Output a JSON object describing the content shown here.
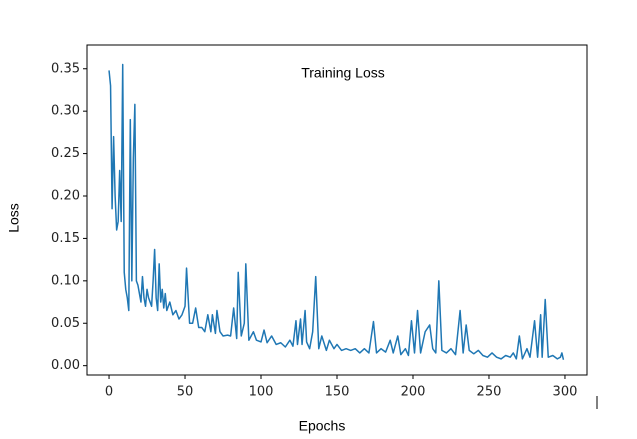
{
  "chart_data": {
    "type": "line",
    "title": "Training Loss",
    "xlabel": "Epochs",
    "ylabel": "Loss",
    "x": [
      0,
      1,
      2,
      3,
      4,
      5,
      6,
      7,
      8,
      9,
      10,
      11,
      12,
      13,
      14,
      15,
      16,
      17,
      18,
      19,
      20,
      21,
      22,
      23,
      24,
      25,
      26,
      27,
      28,
      29,
      30,
      31,
      32,
      33,
      34,
      35,
      36,
      37,
      38,
      40,
      42,
      44,
      46,
      48,
      50,
      51,
      53,
      55,
      57,
      59,
      61,
      63,
      65,
      67,
      68,
      70,
      71,
      73,
      75,
      78,
      80,
      82,
      84,
      85,
      87,
      89,
      90,
      92,
      95,
      97,
      100,
      102,
      104,
      107,
      110,
      113,
      116,
      119,
      121,
      123,
      124,
      126,
      127,
      129,
      130,
      132,
      134,
      136,
      138,
      140,
      143,
      145,
      148,
      150,
      153,
      156,
      159,
      162,
      165,
      168,
      171,
      174,
      176,
      179,
      182,
      185,
      187,
      190,
      192,
      195,
      197,
      199,
      201,
      203,
      205,
      208,
      211,
      213,
      215,
      217,
      219,
      222,
      225,
      228,
      231,
      233,
      235,
      237,
      240,
      243,
      246,
      249,
      252,
      255,
      258,
      261,
      264,
      266,
      268,
      270,
      272,
      275,
      277,
      280,
      282,
      284,
      285,
      287,
      289,
      292,
      295,
      297,
      298,
      299
    ],
    "series": [
      {
        "name": "Training Loss",
        "color": "#1f77b4",
        "values": [
          0.348,
          0.33,
          0.185,
          0.27,
          0.2,
          0.16,
          0.17,
          0.23,
          0.17,
          0.355,
          0.11,
          0.09,
          0.08,
          0.065,
          0.29,
          0.1,
          0.245,
          0.308,
          0.1,
          0.095,
          0.085,
          0.075,
          0.105,
          0.08,
          0.07,
          0.09,
          0.08,
          0.075,
          0.07,
          0.1,
          0.137,
          0.08,
          0.065,
          0.12,
          0.075,
          0.09,
          0.068,
          0.085,
          0.065,
          0.075,
          0.06,
          0.065,
          0.055,
          0.06,
          0.07,
          0.115,
          0.05,
          0.05,
          0.068,
          0.045,
          0.045,
          0.04,
          0.06,
          0.04,
          0.06,
          0.038,
          0.065,
          0.04,
          0.035,
          0.036,
          0.035,
          0.068,
          0.032,
          0.11,
          0.035,
          0.05,
          0.12,
          0.03,
          0.04,
          0.03,
          0.028,
          0.042,
          0.027,
          0.035,
          0.025,
          0.027,
          0.022,
          0.03,
          0.023,
          0.053,
          0.025,
          0.055,
          0.025,
          0.065,
          0.028,
          0.02,
          0.04,
          0.105,
          0.02,
          0.035,
          0.018,
          0.03,
          0.02,
          0.025,
          0.018,
          0.02,
          0.018,
          0.02,
          0.015,
          0.02,
          0.015,
          0.052,
          0.015,
          0.02,
          0.016,
          0.03,
          0.015,
          0.035,
          0.013,
          0.02,
          0.012,
          0.053,
          0.015,
          0.065,
          0.015,
          0.04,
          0.048,
          0.02,
          0.015,
          0.1,
          0.018,
          0.015,
          0.02,
          0.013,
          0.065,
          0.015,
          0.048,
          0.018,
          0.014,
          0.018,
          0.012,
          0.01,
          0.015,
          0.01,
          0.008,
          0.012,
          0.01,
          0.015,
          0.008,
          0.035,
          0.008,
          0.02,
          0.01,
          0.053,
          0.01,
          0.06,
          0.01,
          0.078,
          0.01,
          0.012,
          0.008,
          0.01,
          0.015,
          0.007
        ]
      }
    ],
    "xlim": [
      -14.5,
      314.5
    ],
    "ylim": [
      -0.011,
      0.378
    ],
    "xticks": [
      0,
      50,
      100,
      150,
      200,
      250,
      300
    ],
    "yticks": [
      {
        "value": 0,
        "label": "0.00"
      },
      {
        "value": 0.05,
        "label": "0.05"
      },
      {
        "value": 0.1,
        "label": "0.10"
      },
      {
        "value": 0.15,
        "label": "0.15"
      },
      {
        "value": 0.2,
        "label": "0.20"
      },
      {
        "value": 0.25,
        "label": "0.25"
      },
      {
        "value": 0.3,
        "label": "0.30"
      },
      {
        "value": 0.35,
        "label": "0.35"
      }
    ]
  }
}
